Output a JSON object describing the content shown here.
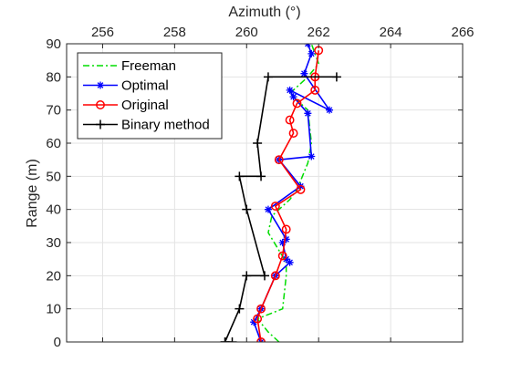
{
  "chart_data": {
    "type": "line",
    "xlabel": "Azimuth (°)",
    "ylabel": "Range (m)",
    "xlim": [
      255,
      266
    ],
    "ylim": [
      0,
      90
    ],
    "x_axis_position": "top",
    "y_reversed": false,
    "xticks": [
      256,
      258,
      260,
      262,
      264,
      266
    ],
    "yticks": [
      0,
      10,
      20,
      30,
      40,
      50,
      60,
      70,
      80,
      90
    ],
    "xtick_labels": [
      "256",
      "258",
      "260",
      "262",
      "264",
      "266"
    ],
    "ytick_labels": [
      "0",
      "10",
      "20",
      "30",
      "40",
      "50",
      "60",
      "70",
      "80",
      "90"
    ],
    "grid": true,
    "legend_position": "top-left",
    "series": [
      {
        "name": "Freeman",
        "color": "#00dd00",
        "line_style": "dashdot",
        "marker": "none",
        "points": [
          [
            260.9,
            0
          ],
          [
            260.6,
            3
          ],
          [
            260.3,
            7
          ],
          [
            261.0,
            10
          ],
          [
            261.1,
            20
          ],
          [
            261.1,
            24
          ],
          [
            260.6,
            33
          ],
          [
            260.7,
            38
          ],
          [
            261.2,
            43
          ],
          [
            261.4,
            46
          ],
          [
            261.7,
            54
          ],
          [
            261.8,
            60
          ],
          [
            261.7,
            70
          ],
          [
            261.2,
            75
          ],
          [
            261.7,
            80
          ],
          [
            262.0,
            84
          ],
          [
            261.8,
            90
          ]
        ]
      },
      {
        "name": "Optimal",
        "color": "#0000ff",
        "line_style": "solid",
        "marker": "asterisk",
        "points": [
          [
            260.4,
            0
          ],
          [
            260.2,
            6
          ],
          [
            260.4,
            10
          ],
          [
            260.8,
            20
          ],
          [
            261.2,
            24
          ],
          [
            261.1,
            25
          ],
          [
            261.0,
            30
          ],
          [
            261.1,
            31
          ],
          [
            260.6,
            40
          ],
          [
            261.5,
            47
          ],
          [
            260.9,
            55
          ],
          [
            261.8,
            56
          ],
          [
            261.7,
            69
          ],
          [
            261.3,
            74
          ],
          [
            261.2,
            76
          ],
          [
            262.3,
            70
          ],
          [
            261.6,
            81
          ],
          [
            261.8,
            87
          ],
          [
            261.7,
            90
          ]
        ]
      },
      {
        "name": "Original",
        "color": "#ff0000",
        "line_style": "solid",
        "marker": "circle",
        "points": [
          [
            260.4,
            0
          ],
          [
            260.3,
            7
          ],
          [
            260.4,
            10
          ],
          [
            260.8,
            20
          ],
          [
            261.0,
            26
          ],
          [
            261.1,
            34
          ],
          [
            260.8,
            41
          ],
          [
            261.5,
            46
          ],
          [
            260.9,
            55
          ],
          [
            261.3,
            63
          ],
          [
            261.2,
            67
          ],
          [
            261.4,
            72
          ],
          [
            261.9,
            76
          ],
          [
            261.9,
            80
          ],
          [
            262.0,
            88
          ]
        ]
      },
      {
        "name": "Binary method",
        "color": "#000000",
        "line_style": "solid",
        "marker": "plus",
        "points": [
          [
            259.4,
            0
          ],
          [
            259.6,
            0
          ],
          [
            259.4,
            0
          ],
          [
            259.8,
            10
          ],
          [
            260.0,
            20
          ],
          [
            260.5,
            20
          ],
          [
            260.0,
            40
          ],
          [
            259.8,
            50
          ],
          [
            260.4,
            50
          ],
          [
            260.3,
            60
          ],
          [
            260.6,
            80
          ],
          [
            262.5,
            80
          ]
        ]
      }
    ]
  }
}
